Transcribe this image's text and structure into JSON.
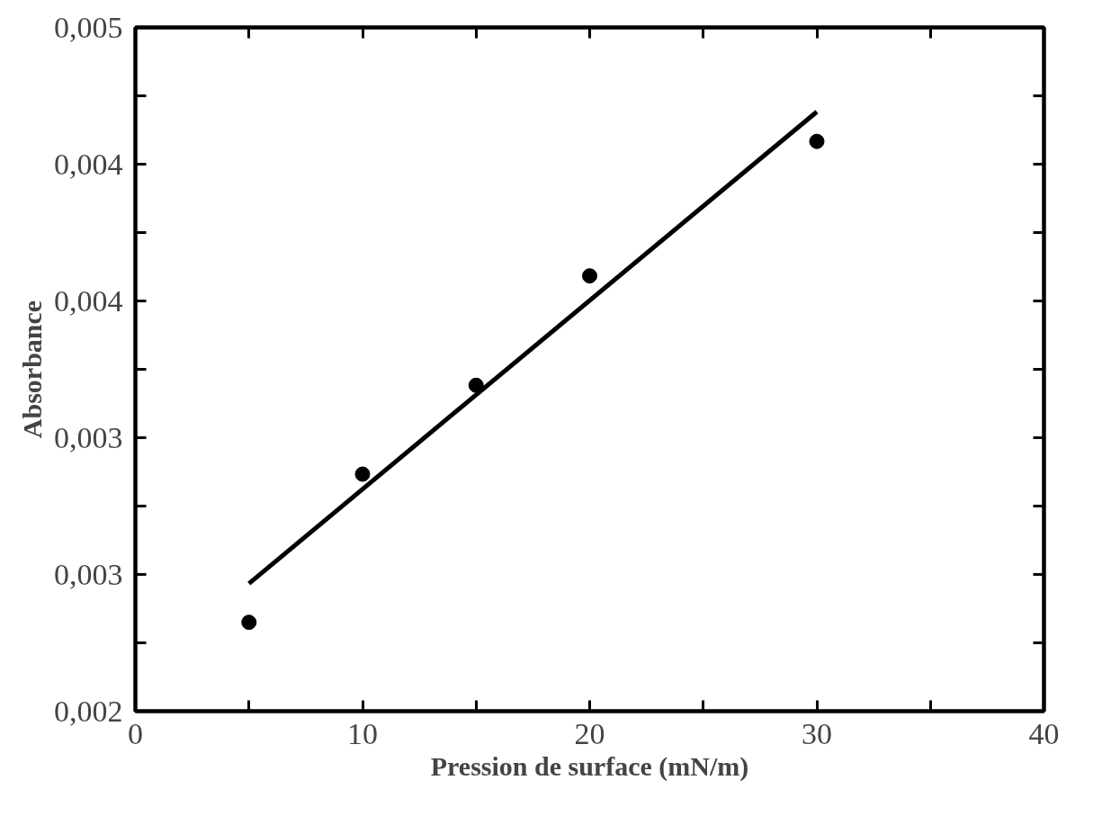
{
  "chart_data": {
    "type": "scatter",
    "xlabel": "Pression de surface (mN/m)",
    "ylabel": "Absorbance",
    "series": [
      {
        "marker": "circle",
        "color": "#000000",
        "x": [
          5,
          10,
          15,
          20,
          30
        ],
        "values": [
          0.00239,
          0.00304,
          0.00343,
          0.00391,
          0.0045
        ]
      },
      {
        "type": "line",
        "color": "#000000",
        "x": [
          5,
          30
        ],
        "values": [
          0.00256,
          0.00463
        ]
      }
    ],
    "line_style": "solid",
    "grid": false,
    "xlim": [
      0,
      40
    ],
    "ylim": [
      0.002,
      0.005
    ],
    "xticks": [
      0,
      {
        "value": 5,
        "label": null
      },
      10,
      {
        "value": 15,
        "label": null
      },
      20,
      {
        "value": 25,
        "label": null
      },
      30,
      {
        "value": 35,
        "label": null
      },
      40
    ],
    "yticks": [
      {
        "value": 0.002,
        "label": "0,002"
      },
      {
        "value": 0.0023,
        "label": null
      },
      {
        "value": 0.0026,
        "label": "0,003"
      },
      {
        "value": 0.0029,
        "label": null
      },
      {
        "value": 0.0032,
        "label": "0,003"
      },
      {
        "value": 0.0035,
        "label": null
      },
      {
        "value": 0.0038,
        "label": "0,004"
      },
      {
        "value": 0.0041,
        "label": null
      },
      {
        "value": 0.0044,
        "label": "0,004"
      },
      {
        "value": 0.0047,
        "label": null
      },
      {
        "value": 0.005,
        "label": "0,005"
      }
    ]
  }
}
